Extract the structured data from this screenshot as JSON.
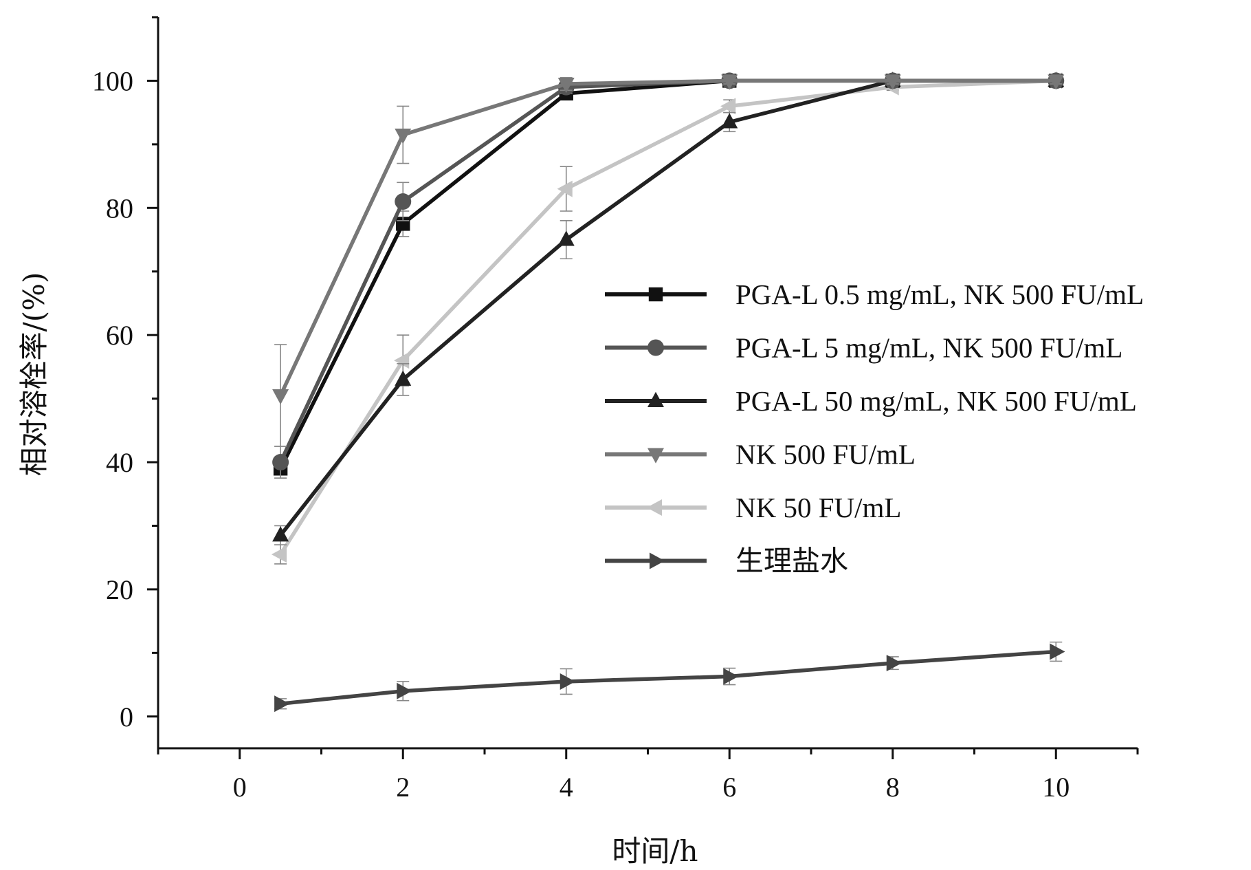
{
  "chart_data": {
    "type": "line",
    "xlabel": "时间/h",
    "ylabel": "相对溶栓率/(%)",
    "xlim": [
      -1,
      11
    ],
    "ylim": [
      -5,
      110
    ],
    "x_ticks": [
      0,
      2,
      4,
      6,
      8,
      10
    ],
    "y_ticks": [
      0,
      20,
      40,
      60,
      80,
      100
    ],
    "grid": false,
    "legend_position": "right",
    "x": [
      0.5,
      2,
      4,
      6,
      8,
      10
    ],
    "series": [
      {
        "name": "PGA-L 0.5 mg/mL, NK 500 FU/mL",
        "marker": "square",
        "color": "#111111",
        "values": [
          39,
          77.5,
          98,
          100,
          100,
          100
        ],
        "errors": [
          1.5,
          2,
          1,
          0.5,
          0.5,
          0.5
        ]
      },
      {
        "name": "PGA-L 5 mg/mL, NK 500 FU/mL",
        "marker": "circle",
        "color": "#555555",
        "values": [
          40,
          81,
          99,
          100,
          100,
          100
        ],
        "errors": [
          2.5,
          3,
          1,
          0.5,
          0.5,
          0.5
        ]
      },
      {
        "name": "PGA-L 50 mg/mL, NK 500 FU/mL",
        "marker": "triangle-up",
        "color": "#222222",
        "values": [
          28.5,
          53,
          75,
          93.5,
          100,
          100
        ],
        "errors": [
          1.5,
          2.5,
          3,
          1.5,
          0.5,
          0.5
        ]
      },
      {
        "name": "NK 500 FU/mL",
        "marker": "triangle-down",
        "color": "#777777",
        "values": [
          50.5,
          91.5,
          99.5,
          100,
          100,
          100
        ],
        "errors": [
          8,
          4.5,
          1,
          0.5,
          0.5,
          0.5
        ]
      },
      {
        "name": "NK 50 FU/mL",
        "marker": "triangle-left",
        "color": "#c4c4c4",
        "values": [
          25.5,
          56,
          83,
          96,
          99,
          100
        ],
        "errors": [
          1.5,
          4,
          3.5,
          1,
          0.5,
          0.5
        ]
      },
      {
        "name": "生理盐水",
        "marker": "triangle-right",
        "color": "#444444",
        "values": [
          2,
          4,
          5.5,
          6.3,
          8.4,
          10.2
        ],
        "errors": [
          0.8,
          1.5,
          2,
          1.3,
          1,
          1.5
        ]
      }
    ]
  }
}
